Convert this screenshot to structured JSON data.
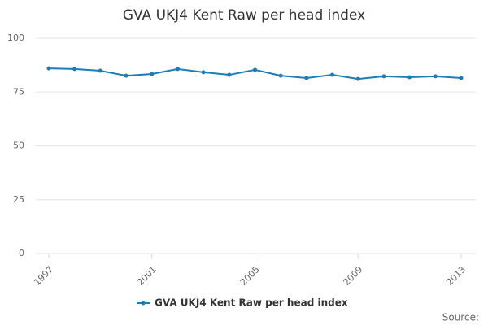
{
  "chart_data": {
    "type": "line",
    "title": "GVA UKJ4 Kent Raw per head index",
    "x": [
      1997,
      1998,
      1999,
      2000,
      2001,
      2002,
      2003,
      2004,
      2005,
      2006,
      2007,
      2008,
      2009,
      2010,
      2011,
      2012,
      2013
    ],
    "series": [
      {
        "name": "GVA UKJ4 Kent Raw per head index",
        "color": "#1a7db8",
        "values": [
          86.0,
          85.7,
          84.9,
          82.6,
          83.4,
          85.7,
          84.2,
          83.0,
          85.3,
          82.6,
          81.5,
          83.0,
          81.1,
          82.3,
          81.9,
          82.3,
          81.5
        ]
      }
    ],
    "xlim": [
      1997,
      2013
    ],
    "xticks": [
      1997,
      2001,
      2005,
      2009,
      2013
    ],
    "ylim": [
      0,
      100
    ],
    "yticks": [
      0,
      25,
      50,
      75,
      100
    ],
    "grid": true,
    "source": "Source:"
  }
}
